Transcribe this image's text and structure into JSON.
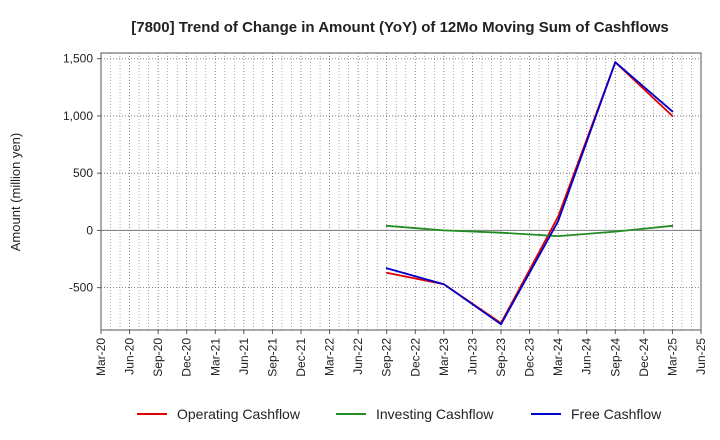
{
  "chart_data": {
    "type": "line",
    "title": "[7800]  Trend of Change in Amount (YoY) of 12Mo Moving Sum of Cashflows",
    "xlabel": "",
    "ylabel": "Amount (million yen)",
    "ylim": [
      -870,
      1550
    ],
    "yticks": [
      -500,
      0,
      500,
      1000,
      1500
    ],
    "ytick_labels": [
      "-500",
      "0",
      "500",
      "1,000",
      "1,500"
    ],
    "categories": [
      "Mar-20",
      "Jun-20",
      "Sep-20",
      "Dec-20",
      "Mar-21",
      "Jun-21",
      "Sep-21",
      "Dec-21",
      "Mar-22",
      "Jun-22",
      "Sep-22",
      "Dec-22",
      "Mar-23",
      "Jun-23",
      "Sep-23",
      "Dec-23",
      "Mar-24",
      "Jun-24",
      "Sep-24",
      "Dec-24",
      "Mar-25",
      "Jun-25"
    ],
    "grid": true,
    "legend_position": "bottom",
    "series": [
      {
        "name": "Operating Cashflow",
        "color": "#dd0000",
        "values": [
          null,
          null,
          null,
          null,
          null,
          null,
          null,
          null,
          null,
          null,
          -370,
          null,
          -470,
          null,
          -810,
          null,
          120,
          null,
          1470,
          null,
          1000,
          null
        ]
      },
      {
        "name": "Investing Cashflow",
        "color": "#228b22",
        "values": [
          null,
          null,
          null,
          null,
          null,
          null,
          null,
          null,
          null,
          null,
          40,
          null,
          0,
          null,
          -20,
          null,
          -50,
          null,
          -10,
          null,
          40,
          null
        ]
      },
      {
        "name": "Free Cashflow",
        "color": "#0000cc",
        "values": [
          null,
          null,
          null,
          null,
          null,
          null,
          null,
          null,
          null,
          null,
          -330,
          null,
          -470,
          null,
          -820,
          null,
          80,
          null,
          1470,
          null,
          1040,
          null
        ]
      }
    ]
  }
}
